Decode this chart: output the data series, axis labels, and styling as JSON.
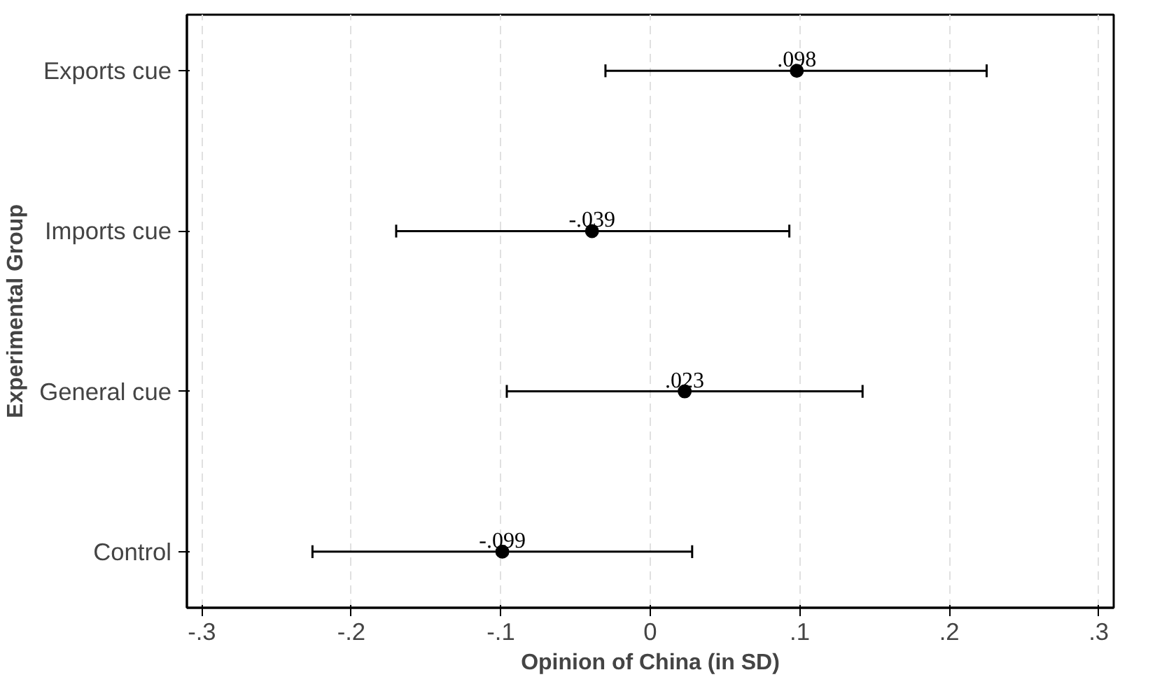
{
  "chart_data": {
    "type": "scatter",
    "orientation": "horizontal",
    "xlabel": "Opinion of China (in SD)",
    "ylabel": "Experimental Group",
    "categories": [
      "Exports cue",
      "Imports cue",
      "General cue",
      "Control"
    ],
    "values": [
      0.098,
      -0.039,
      0.023,
      -0.099
    ],
    "errors": [
      [
        -0.03,
        0.225
      ],
      [
        -0.17,
        0.093
      ],
      [
        -0.096,
        0.142
      ],
      [
        -0.226,
        0.028
      ]
    ],
    "value_labels": [
      ".098",
      "-.039",
      ".023",
      "-.099"
    ],
    "color": "#000000",
    "marker": "circle",
    "xlim": [
      -0.31,
      0.31
    ],
    "xticks": [
      {
        "value": -0.3,
        "label": "-.3"
      },
      {
        "value": -0.2,
        "label": "-.2"
      },
      {
        "value": -0.1,
        "label": "-.1"
      },
      {
        "value": 0,
        "label": "0"
      },
      {
        "value": 0.1,
        "label": ".1"
      },
      {
        "value": 0.2,
        "label": ".2"
      },
      {
        "value": 0.3,
        "label": ".3"
      }
    ],
    "grid": "x"
  }
}
